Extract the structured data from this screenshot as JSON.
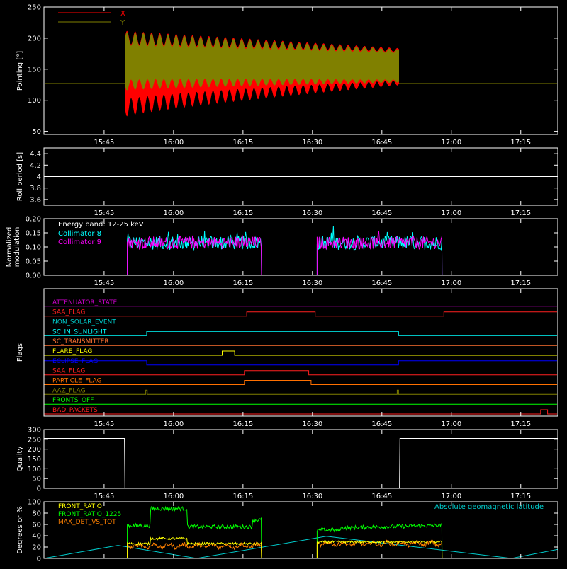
{
  "figure": {
    "background": "#000000",
    "foreground": "#ffffff"
  },
  "time_axis": {
    "tick_labels": [
      "15:45",
      "16:00",
      "16:15",
      "16:30",
      "16:45",
      "17:00",
      "17:15"
    ],
    "tick_minutes": [
      945,
      960,
      975,
      990,
      1005,
      1020,
      1035
    ],
    "range_minutes": [
      932,
      1043
    ]
  },
  "chart_data": [
    {
      "type": "area",
      "ylabel": "Pointing [°]",
      "ylim": [
        45,
        250
      ],
      "yticks": [
        50,
        100,
        150,
        200,
        250
      ],
      "legend": {
        "placement": "top-left"
      },
      "baseline_value": 127,
      "active_interval_minutes": [
        949.5,
        1008.7
      ],
      "wobble_period_minutes": 1.77,
      "series": [
        {
          "name": "X",
          "color": "#ff0000",
          "envelope_start": [
            73,
            212
          ],
          "envelope_end": [
            124,
            184
          ]
        },
        {
          "name": "Y",
          "color": "#808000",
          "envelope_start": [
            110,
            210
          ],
          "envelope_end": [
            127,
            182
          ]
        }
      ]
    },
    {
      "type": "line",
      "ylabel": "Roll period [s]",
      "ylim": [
        3.5,
        4.5
      ],
      "yticks": [
        3.6,
        3.8,
        4.0,
        4.2,
        4.4
      ],
      "series": [
        {
          "color": "#ffffff",
          "value": 4.0
        }
      ]
    },
    {
      "type": "line",
      "ylabel": [
        "Normalized",
        "modulation"
      ],
      "ylim": [
        0,
        0.2
      ],
      "yticks": [
        "0.00",
        "0.05",
        "0.10",
        "0.15",
        "0.20"
      ],
      "annotation": "Energy band: 12-25 keV",
      "series": [
        {
          "name": "Collimator 8",
          "color": "#00ffff"
        },
        {
          "name": "Collimator 9",
          "color": "#ff00ff"
        }
      ],
      "active_intervals_minutes": [
        [
          950,
          979
        ],
        [
          991,
          1018
        ]
      ],
      "level": 0.115,
      "noise": 0.025
    },
    {
      "type": "line",
      "ylabel": "Flags",
      "series": [
        {
          "name": "ATTENUATOR_STATE",
          "color": "#cc00cc",
          "steps": [
            [
              932,
              0
            ]
          ]
        },
        {
          "name": "SAA_FLAG",
          "color": "#ff2020",
          "steps": [
            [
              932,
              0
            ],
            [
              975.8,
              1
            ],
            [
              990.6,
              0
            ],
            [
              1018.4,
              1
            ]
          ]
        },
        {
          "name": "NON_SOLAR_EVENT",
          "color": "#00cccc",
          "steps": [
            [
              932,
              0
            ]
          ]
        },
        {
          "name": "SC_IN_SUNLIGHT",
          "color": "#00ffff",
          "steps": [
            [
              932,
              0
            ],
            [
              954.2,
              1
            ],
            [
              1008.6,
              0
            ]
          ]
        },
        {
          "name": "SC_TRANSMITTER",
          "color": "#ff7030",
          "steps": [
            [
              932,
              0
            ]
          ]
        },
        {
          "name": "FLARE_FLAG",
          "color": "#ffff00",
          "steps": [
            [
              932,
              0
            ],
            [
              970.5,
              1
            ],
            [
              973.2,
              0
            ]
          ]
        },
        {
          "name": "ECLIPSE_FLAG",
          "color": "#0000ff",
          "steps": [
            [
              932,
              1
            ],
            [
              954.2,
              0
            ],
            [
              1008.6,
              1
            ]
          ]
        },
        {
          "name": "SAA_FLAG",
          "color": "#ff2020",
          "steps": [
            [
              932,
              0
            ],
            [
              975.3,
              1
            ],
            [
              989.2,
              0
            ]
          ]
        },
        {
          "name": "PARTICLE_FLAG",
          "color": "#ff7000",
          "steps": [
            [
              932,
              0
            ],
            [
              975.3,
              1
            ],
            [
              989.7,
              0
            ]
          ]
        },
        {
          "name": "AAZ_FLAG",
          "color": "#808000",
          "steps": [
            [
              932,
              0
            ],
            [
              954.0,
              1
            ],
            [
              954.3,
              0
            ],
            [
              1008.3,
              1
            ],
            [
              1008.6,
              0
            ]
          ]
        },
        {
          "name": "FRONTS_OFF",
          "color": "#00ff00",
          "steps": [
            [
              932,
              0
            ]
          ]
        },
        {
          "name": "BAD_PACKETS",
          "color": "#ff2020",
          "steps": [
            [
              932,
              0
            ],
            [
              1039.3,
              1
            ],
            [
              1040.8,
              0
            ]
          ]
        }
      ]
    },
    {
      "type": "line",
      "ylabel": "Quality",
      "ylim": [
        0,
        300
      ],
      "yticks": [
        0,
        50,
        100,
        150,
        200,
        250,
        300
      ],
      "series": [
        {
          "color": "#ffffff",
          "steps": [
            [
              932,
              255
            ],
            [
              949.4,
              255
            ],
            [
              949.5,
              0
            ],
            [
              1008.8,
              0
            ],
            [
              1008.9,
              255
            ],
            [
              1043,
              255
            ]
          ]
        }
      ]
    },
    {
      "type": "line",
      "ylabel": "Degrees or %",
      "ylim": [
        0,
        100
      ],
      "yticks": [
        0,
        20,
        40,
        60,
        80,
        100
      ],
      "annotation": "Absolute geomagnetic latitude",
      "series": [
        {
          "name": "FRONT_RATIO",
          "color": "#ffff00"
        },
        {
          "name": "FRONT_RATIO_1225",
          "color": "#00ff00"
        },
        {
          "name": "MAX_DET_VS_TOT",
          "color": "#ff8000"
        },
        {
          "name": "Absolute geomagnetic latitude",
          "color": "#00cccc"
        }
      ],
      "geolat_points": [
        [
          932,
          0
        ],
        [
          948,
          23
        ],
        [
          965,
          0
        ],
        [
          993,
          39
        ],
        [
          1033,
          0
        ],
        [
          1043,
          16
        ]
      ],
      "active_intervals_minutes": [
        [
          950,
          979
        ],
        [
          991,
          1018
        ]
      ]
    }
  ]
}
